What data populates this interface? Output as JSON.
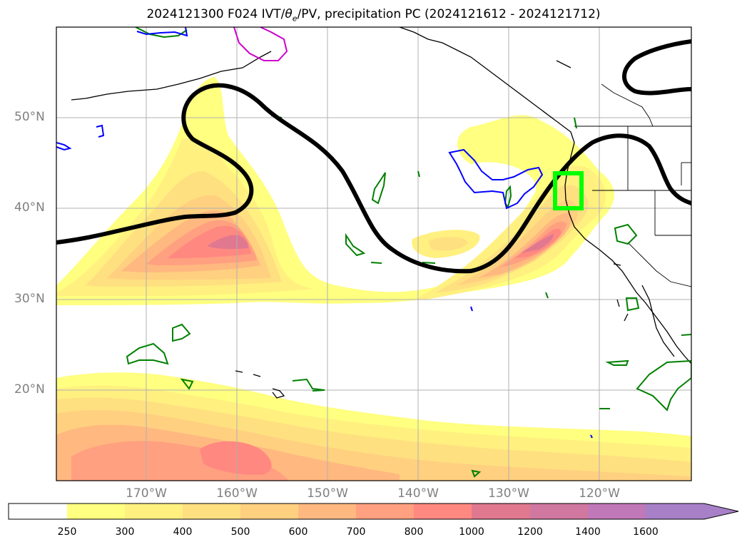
{
  "title": {
    "prefix": "2024121300 F024 IVT/",
    "theta": "θ",
    "theta_sub": "e",
    "suffix": "/PV, precipitation PC (2024121612 - 2024121712)"
  },
  "latitude_labels": [
    "50°N",
    "40°N",
    "30°N",
    "20°N"
  ],
  "longitude_labels": [
    "170°W",
    "160°W",
    "150°W",
    "140°W",
    "130°W",
    "120°W"
  ],
  "colorbar": {
    "levels": [
      "250",
      "300",
      "400",
      "500",
      "600",
      "700",
      "800",
      "1000",
      "1200",
      "1400",
      "1600"
    ],
    "colors": [
      "#ffffff",
      "#ffff80",
      "#fff080",
      "#ffe080",
      "#ffd080",
      "#ffb880",
      "#ffa080",
      "#ff8880",
      "#e07890",
      "#d078a0",
      "#c078b8",
      "#a880c8"
    ],
    "extend": "max"
  },
  "colors": {
    "pv_contour": "#000000",
    "theta_contour_blue": "#0000ff",
    "theta_contour_green": "#008000",
    "theta_contour_magenta": "#cc00cc",
    "box": "#00ff00",
    "grid": "#b0b0b0",
    "coastline": "#000000"
  }
}
